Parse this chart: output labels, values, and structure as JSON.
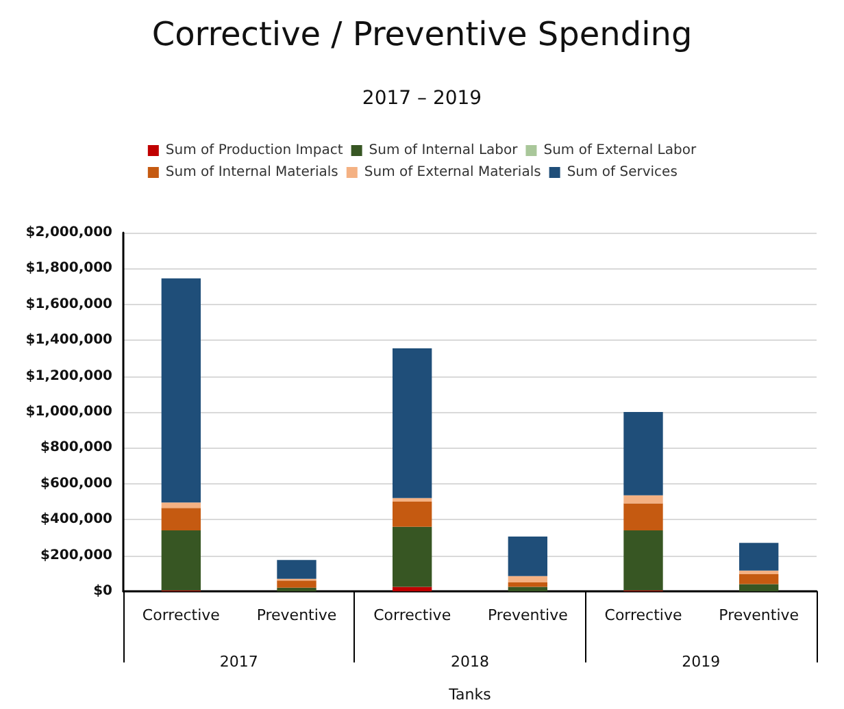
{
  "chart_data": {
    "type": "bar",
    "stacked": true,
    "title": "Corrective / Preventive Spending",
    "subtitle": "2017 – 2019",
    "xlabel": "Tanks",
    "categories": [
      "Corrective",
      "Preventive",
      "Corrective",
      "Preventive",
      "Corrective",
      "Preventive"
    ],
    "annotations": [
      "2017",
      "2018",
      "2019"
    ],
    "series": [
      {
        "name": "Sum of Production Impact",
        "color": "#c00000",
        "values": [
          5000,
          0,
          25000,
          0,
          5000,
          0
        ]
      },
      {
        "name": "Sum of Internal Labor",
        "color": "#375623",
        "values": [
          335000,
          20000,
          335000,
          25000,
          335000,
          40000
        ]
      },
      {
        "name": "Sum of External Labor",
        "color": "#a9c79a",
        "values": [
          0,
          0,
          0,
          0,
          0,
          0
        ]
      },
      {
        "name": "Sum of Internal Materials",
        "color": "#c55a11",
        "values": [
          125000,
          40000,
          140000,
          25000,
          150000,
          55000
        ]
      },
      {
        "name": "Sum of External Materials",
        "color": "#f4b183",
        "values": [
          30000,
          10000,
          20000,
          35000,
          45000,
          20000
        ]
      },
      {
        "name": "Sum of Services",
        "color": "#1f4e79",
        "values": [
          1250000,
          105000,
          835000,
          220000,
          465000,
          155000
        ]
      }
    ],
    "ylim": [
      0,
      2000000
    ],
    "yticks": [
      {
        "value": 0,
        "label": "$0"
      },
      {
        "value": 200000,
        "label": "$200,000"
      },
      {
        "value": 400000,
        "label": "$400,000"
      },
      {
        "value": 600000,
        "label": "$600,000"
      },
      {
        "value": 800000,
        "label": "$800,000"
      },
      {
        "value": 1000000,
        "label": "$1,000,000"
      },
      {
        "value": 1200000,
        "label": "$1,200,000"
      },
      {
        "value": 1400000,
        "label": "$1,400,000"
      },
      {
        "value": 1600000,
        "label": "$1,600,000"
      },
      {
        "value": 1800000,
        "label": "$1,800,000"
      },
      {
        "value": 2000000,
        "label": "$2,000,000"
      }
    ],
    "grid": "y",
    "legend": "top"
  }
}
